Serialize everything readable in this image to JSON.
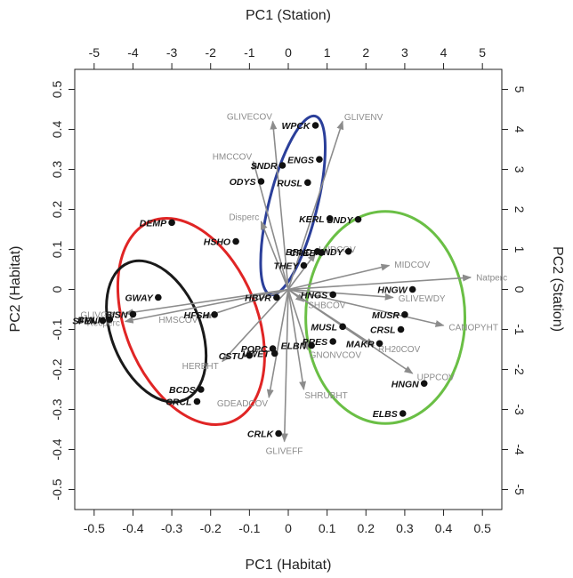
{
  "chart_data": {
    "type": "scatter",
    "x_bottom_label": "PC1 (Habitat)",
    "y_left_label": "PC2 (Habitat)",
    "x_top_label": "PC1 (Station)",
    "y_right_label": "PC2 (Station)",
    "xlim": [
      -0.55,
      0.55
    ],
    "ylim": [
      -0.55,
      0.55
    ],
    "x_ticks": [
      -0.5,
      -0.4,
      -0.3,
      -0.2,
      -0.1,
      0,
      0.1,
      0.2,
      0.3,
      0.4,
      0.5
    ],
    "y_ticks": [
      -0.5,
      -0.4,
      -0.3,
      -0.2,
      -0.1,
      0,
      0.1,
      0.2,
      0.3,
      0.4,
      0.5
    ],
    "x_tick_labels": [
      "-0.5",
      "-0.4",
      "-0.3",
      "-0.2",
      "-0.1",
      "0",
      "0.1",
      "0.2",
      "0.3",
      "0.4",
      "0.5"
    ],
    "y_tick_labels": [
      "-0.5",
      "-0.4",
      "-0.3",
      "-0.2",
      "-0.1",
      "0",
      "0.1",
      "0.2",
      "0.3",
      "0.4",
      "0.5"
    ],
    "x_top_ticks": [
      -5,
      -4,
      -3,
      -2,
      -1,
      0,
      1,
      2,
      3,
      4,
      5
    ],
    "y_right_ticks": [
      -5,
      -4,
      -3,
      -2,
      -1,
      0,
      1,
      2,
      3,
      4,
      5
    ],
    "x_top_tick_labels": [
      "-5",
      "-4",
      "-3",
      "-2",
      "-1",
      "0",
      "1",
      "2",
      "3",
      "4",
      "5"
    ],
    "y_right_tick_labels": [
      "-5",
      "-4",
      "-3",
      "-2",
      "-1",
      "0",
      "1",
      "2",
      "3",
      "4",
      "5"
    ],
    "station_scale": 10,
    "grid": false,
    "colors": {
      "points": "#111111",
      "arrows": "#8c8c8c",
      "red_ellipse": "#e02525",
      "black_ellipse": "#1a1a1a",
      "blue_ellipse": "#2b3f9a",
      "green_ellipse": "#6abf45"
    },
    "sites": [
      {
        "label": "WPCK",
        "x": 0.07,
        "y": 0.41
      },
      {
        "label": "ENGS",
        "x": 0.08,
        "y": 0.325
      },
      {
        "label": "SNDR",
        "x": -0.015,
        "y": 0.31
      },
      {
        "label": "RUSL",
        "x": 0.05,
        "y": 0.267
      },
      {
        "label": "ODYS",
        "x": -0.07,
        "y": 0.27
      },
      {
        "label": "KERL",
        "x": 0.107,
        "y": 0.177
      },
      {
        "label": "SNDY",
        "x": 0.18,
        "y": 0.175
      },
      {
        "label": "DEMP",
        "x": -0.3,
        "y": 0.167
      },
      {
        "label": "HSHO",
        "x": -0.135,
        "y": 0.12
      },
      {
        "label": "BPND",
        "x": 0.075,
        "y": 0.095
      },
      {
        "label": "CREB",
        "x": 0.085,
        "y": 0.092
      },
      {
        "label": "MNDY",
        "x": 0.155,
        "y": 0.095
      },
      {
        "label": "THEY",
        "x": 0.04,
        "y": 0.06
      },
      {
        "label": "HNGW",
        "x": 0.32,
        "y": 0.0
      },
      {
        "label": "GWAY",
        "x": -0.335,
        "y": -0.02
      },
      {
        "label": "HBVR",
        "x": -0.03,
        "y": -0.02
      },
      {
        "label": "HNGS",
        "x": 0.115,
        "y": -0.013
      },
      {
        "label": "HFSH",
        "x": -0.19,
        "y": -0.063
      },
      {
        "label": "BMLN",
        "x": -0.46,
        "y": -0.075
      },
      {
        "label": "BISN",
        "x": -0.4,
        "y": -0.062
      },
      {
        "label": "SFEN",
        "x": -0.478,
        "y": -0.078
      },
      {
        "label": "MUSL",
        "x": 0.14,
        "y": -0.093
      },
      {
        "label": "MUSR",
        "x": 0.3,
        "y": -0.063
      },
      {
        "label": "CRSL",
        "x": 0.29,
        "y": -0.1
      },
      {
        "label": "MAKR",
        "x": 0.235,
        "y": -0.135
      },
      {
        "label": "POPC",
        "x": -0.04,
        "y": -0.148
      },
      {
        "label": "ELBN",
        "x": 0.06,
        "y": -0.14
      },
      {
        "label": "PRES",
        "x": 0.115,
        "y": -0.13
      },
      {
        "label": "CSTU",
        "x": -0.1,
        "y": -0.165
      },
      {
        "label": "VWET",
        "x": -0.035,
        "y": -0.16
      },
      {
        "label": "HNGN",
        "x": 0.35,
        "y": -0.235
      },
      {
        "label": "BCDS",
        "x": -0.225,
        "y": -0.25
      },
      {
        "label": "CRCL",
        "x": -0.235,
        "y": -0.28
      },
      {
        "label": "ELBS",
        "x": 0.295,
        "y": -0.31
      },
      {
        "label": "CRLK",
        "x": -0.025,
        "y": -0.36
      }
    ],
    "variables": [
      {
        "label": "GLIVENV",
        "x": 0.14,
        "y": 0.42
      },
      {
        "label": "GLIVECOV",
        "x": -0.04,
        "y": 0.42
      },
      {
        "label": "HMCCOV",
        "x": -0.09,
        "y": 0.32
      },
      {
        "label": "Disperc",
        "x": -0.07,
        "y": 0.17
      },
      {
        "label": "LNDCOV",
        "x": 0.07,
        "y": 0.09
      },
      {
        "label": "MIDCOV",
        "x": 0.26,
        "y": 0.06
      },
      {
        "label": "Natperc",
        "x": 0.47,
        "y": 0.03
      },
      {
        "label": "GLIVEWDY",
        "x": 0.27,
        "y": -0.02
      },
      {
        "label": "GLIVGRS",
        "x": -0.42,
        "y": -0.06
      },
      {
        "label": "Recperc",
        "x": -0.42,
        "y": -0.08
      },
      {
        "label": "HMSCOV",
        "x": -0.22,
        "y": -0.07
      },
      {
        "label": "SHBCOV",
        "x": 0.04,
        "y": -0.03
      },
      {
        "label": "CANOPYHT",
        "x": 0.4,
        "y": -0.09
      },
      {
        "label": "RH20COV",
        "x": 0.22,
        "y": -0.14
      },
      {
        "label": "GNONVCOV",
        "x": 0.05,
        "y": -0.15
      },
      {
        "label": "HERBHT",
        "x": -0.17,
        "y": -0.18
      },
      {
        "label": "SHRUBHT",
        "x": 0.04,
        "y": -0.25
      },
      {
        "label": "UPPCOV",
        "x": 0.32,
        "y": -0.21
      },
      {
        "label": "GDEADCOV",
        "x": -0.05,
        "y": -0.27
      },
      {
        "label": "GLIVEFF",
        "x": -0.01,
        "y": -0.38
      }
    ],
    "ellipses": [
      {
        "color": "red",
        "cx": -0.25,
        "cy": -0.08,
        "rx": 0.17,
        "ry": 0.27,
        "rotate_deg": -22
      },
      {
        "color": "black",
        "cx": -0.34,
        "cy": -0.105,
        "rx": 0.115,
        "ry": 0.185,
        "rotate_deg": -22
      },
      {
        "color": "blue",
        "cx": 0.012,
        "cy": 0.21,
        "rx": 0.062,
        "ry": 0.23,
        "rotate_deg": 14
      },
      {
        "color": "green",
        "cx": 0.25,
        "cy": -0.07,
        "rx": 0.205,
        "ry": 0.265,
        "rotate_deg": 0
      }
    ]
  }
}
